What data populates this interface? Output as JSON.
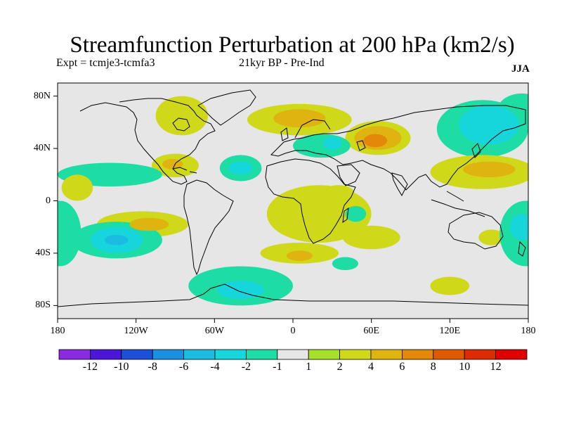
{
  "title": "Streamfunction Perturbation at 200 hPa (km2/s)",
  "subtitle_left": "Expt = tcmje3-tcmfa3",
  "subtitle_center": "21kyr BP - Pre-Ind",
  "subtitle_right": "JJA",
  "lat_ticks": [
    {
      "label": "80N",
      "lat": 80
    },
    {
      "label": "40N",
      "lat": 40
    },
    {
      "label": "0",
      "lat": 0
    },
    {
      "label": "40S",
      "lat": -40
    },
    {
      "label": "80S",
      "lat": -80
    }
  ],
  "lon_ticks": [
    {
      "label": "180",
      "lon": -180
    },
    {
      "label": "120W",
      "lon": -120
    },
    {
      "label": "60W",
      "lon": -60
    },
    {
      "label": "0",
      "lon": 0
    },
    {
      "label": "60E",
      "lon": 60
    },
    {
      "label": "120E",
      "lon": 120
    },
    {
      "label": "180",
      "lon": 180
    }
  ],
  "colorbar": {
    "colors": [
      "#8a2be2",
      "#4b16d8",
      "#1c50d6",
      "#1a8fe0",
      "#1bbce0",
      "#16d6dc",
      "#1ddca4",
      "#e6e6e6",
      "#a6e02a",
      "#d0d81a",
      "#dfb410",
      "#e38808",
      "#df5a00",
      "#dd2c00",
      "#e00000"
    ],
    "labels": [
      "-12",
      "-10",
      "-8",
      "-6",
      "-4",
      "-2",
      "-1",
      "1",
      "2",
      "4",
      "6",
      "8",
      "10",
      "12"
    ]
  },
  "chart_data": {
    "type": "heatmap",
    "title": "Streamfunction Perturbation at 200 hPa (km2/s)",
    "xlim": [
      -180,
      180
    ],
    "ylim": [
      -90,
      90
    ],
    "levels": [
      -12,
      -10,
      -8,
      -6,
      -4,
      -2,
      -1,
      1,
      2,
      4,
      6,
      8,
      10,
      12
    ],
    "anomalies": [
      {
        "lon": -85,
        "lat": 65,
        "rx": 20,
        "ry": 15,
        "value": 2
      },
      {
        "lon": 5,
        "lat": 62,
        "rx": 40,
        "ry": 12,
        "value": 2
      },
      {
        "lon": 5,
        "lat": 63,
        "rx": 20,
        "ry": 7,
        "value": 4
      },
      {
        "lon": 65,
        "lat": 48,
        "rx": 25,
        "ry": 13,
        "value": 2
      },
      {
        "lon": 65,
        "lat": 48,
        "rx": 18,
        "ry": 9,
        "value": 4
      },
      {
        "lon": 63,
        "lat": 46,
        "rx": 9,
        "ry": 5,
        "value": 6
      },
      {
        "lon": 145,
        "lat": 55,
        "rx": 35,
        "ry": 22,
        "value": -2
      },
      {
        "lon": 150,
        "lat": 58,
        "rx": 23,
        "ry": 15,
        "value": -4
      },
      {
        "lon": 22,
        "lat": 42,
        "rx": 22,
        "ry": 9,
        "value": -2
      },
      {
        "lon": 30,
        "lat": 44,
        "rx": 7,
        "ry": 5,
        "value": -4
      },
      {
        "lon": -40,
        "lat": 25,
        "rx": 16,
        "ry": 10,
        "value": -2
      },
      {
        "lon": -40,
        "lat": 25,
        "rx": 9,
        "ry": 5,
        "value": -4
      },
      {
        "lon": -90,
        "lat": 27,
        "rx": 18,
        "ry": 9,
        "value": 2
      },
      {
        "lon": -92,
        "lat": 28,
        "rx": 8,
        "ry": 4,
        "value": 4
      },
      {
        "lon": -140,
        "lat": 20,
        "rx": 40,
        "ry": 9,
        "value": -2
      },
      {
        "lon": 145,
        "lat": 22,
        "rx": 40,
        "ry": 13,
        "value": 2
      },
      {
        "lon": 150,
        "lat": 24,
        "rx": 20,
        "ry": 6,
        "value": 4
      },
      {
        "lon": -115,
        "lat": -18,
        "rx": 35,
        "ry": 10,
        "value": 2
      },
      {
        "lon": -110,
        "lat": -18,
        "rx": 15,
        "ry": 5,
        "value": 4
      },
      {
        "lon": -135,
        "lat": -30,
        "rx": 35,
        "ry": 14,
        "value": -2
      },
      {
        "lon": -135,
        "lat": -30,
        "rx": 20,
        "ry": 10,
        "value": -4
      },
      {
        "lon": -135,
        "lat": -30,
        "rx": 9,
        "ry": 4,
        "value": -6
      },
      {
        "lon": -40,
        "lat": -65,
        "rx": 40,
        "ry": 15,
        "value": -2
      },
      {
        "lon": -40,
        "lat": -68,
        "rx": 18,
        "ry": 7,
        "value": -4
      },
      {
        "lon": 5,
        "lat": -40,
        "rx": 30,
        "ry": 8,
        "value": 2
      },
      {
        "lon": 5,
        "lat": -42,
        "rx": 10,
        "ry": 4,
        "value": 4
      },
      {
        "lon": 20,
        "lat": -10,
        "rx": 40,
        "ry": 22,
        "value": 2
      },
      {
        "lon": 60,
        "lat": -28,
        "rx": 22,
        "ry": 9,
        "value": 2
      },
      {
        "lon": 48,
        "lat": -10,
        "rx": 8,
        "ry": 6,
        "value": -2
      },
      {
        "lon": 35,
        "lat": 6,
        "rx": 12,
        "ry": 6,
        "value": 2
      },
      {
        "lon": 40,
        "lat": -48,
        "rx": 10,
        "ry": 5,
        "value": -2
      },
      {
        "lon": 120,
        "lat": -65,
        "rx": 15,
        "ry": 7,
        "value": 2
      },
      {
        "lon": 152,
        "lat": -28,
        "rx": 10,
        "ry": 6,
        "value": 2
      },
      {
        "lon": 178,
        "lat": -25,
        "rx": 20,
        "ry": 25,
        "value": -2
      },
      {
        "lon": -178,
        "lat": -25,
        "rx": 16,
        "ry": 25,
        "value": -2
      },
      {
        "lon": 175,
        "lat": -20,
        "rx": 9,
        "ry": 10,
        "value": -4
      },
      {
        "lon": -165,
        "lat": 10,
        "rx": 12,
        "ry": 10,
        "value": 2
      },
      {
        "lon": 175,
        "lat": 70,
        "rx": 18,
        "ry": 12,
        "value": -2
      }
    ]
  }
}
